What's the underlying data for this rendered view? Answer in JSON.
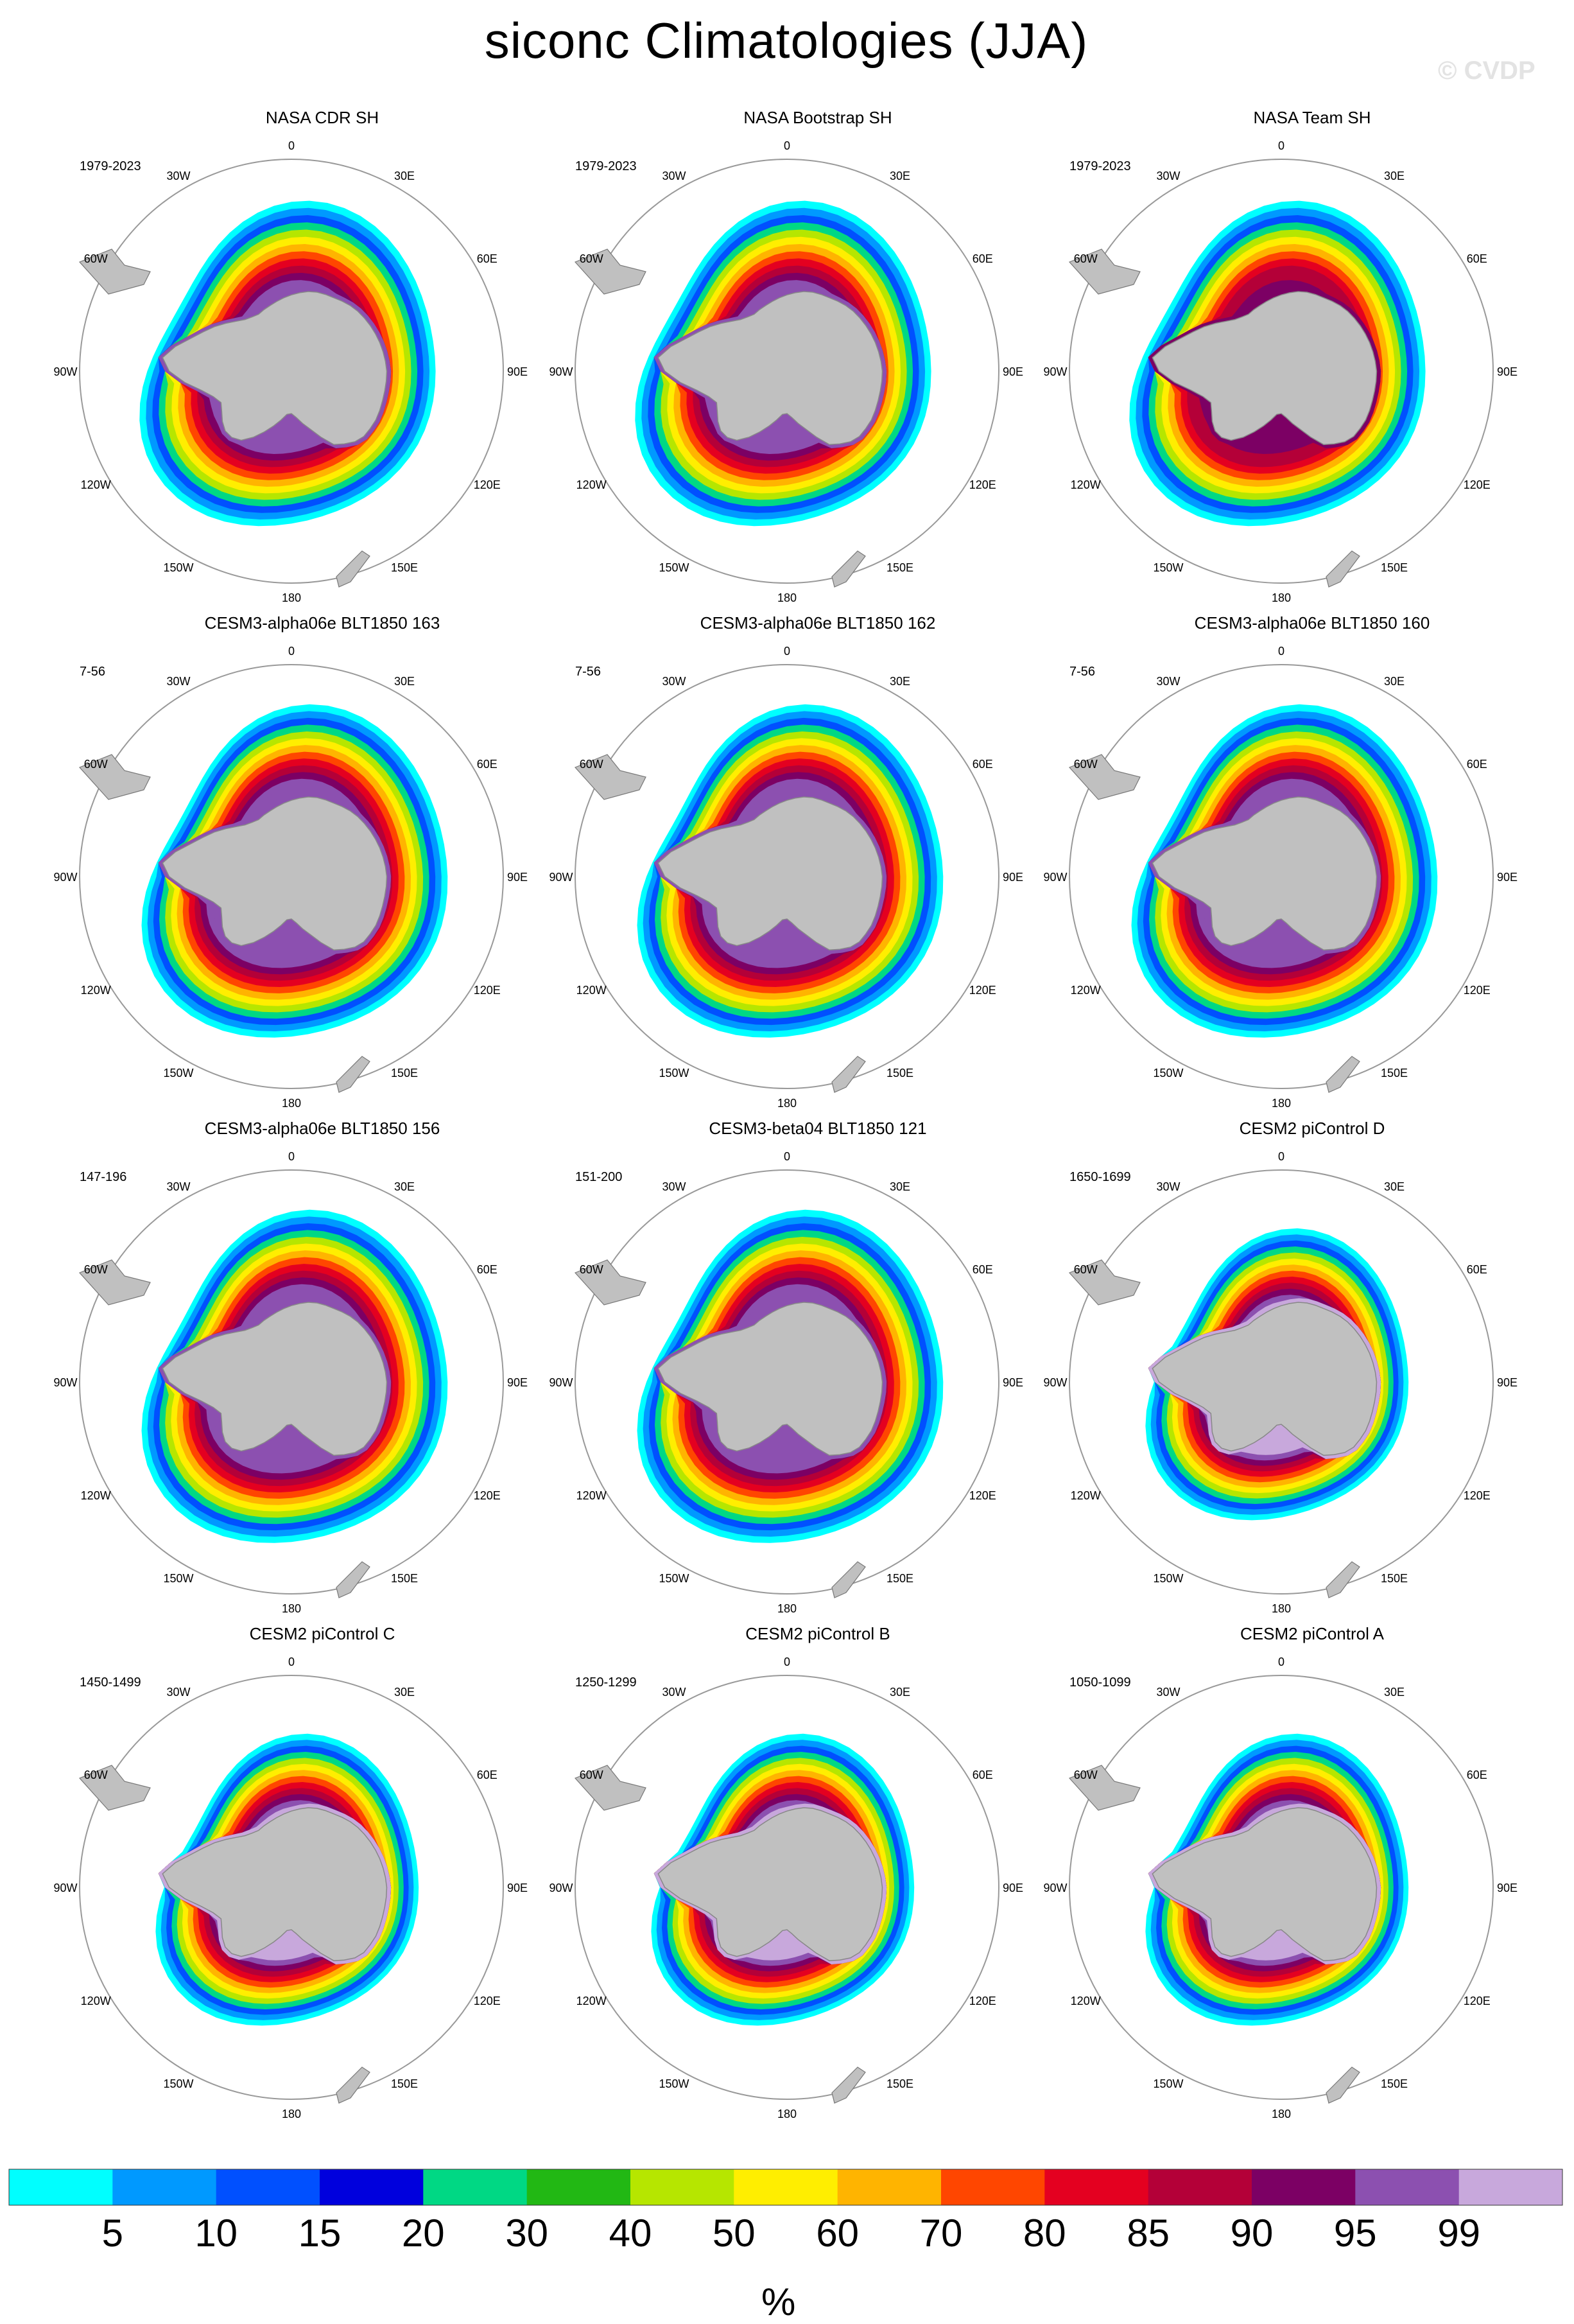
{
  "title": "siconc Climatologies (JJA)",
  "watermark": "© CVDP",
  "map": {
    "longitude_labels": [
      "0",
      "30E",
      "60E",
      "90E",
      "120E",
      "150E",
      "180",
      "150W",
      "120W",
      "90W",
      "60W",
      "30W"
    ],
    "land_color": "#c0c0c0",
    "pole_color": "#ffffff"
  },
  "panels": [
    {
      "title": "NASA CDR SH",
      "years": "1979-2023",
      "style": "obs"
    },
    {
      "title": "NASA Bootstrap SH",
      "years": "1979-2023",
      "style": "obs"
    },
    {
      "title": "NASA Team SH",
      "years": "1979-2023",
      "style": "obs-team"
    },
    {
      "title": "CESM3-alpha06e BLT1850 163",
      "years": "7-56",
      "style": "model"
    },
    {
      "title": "CESM3-alpha06e BLT1850 162",
      "years": "7-56",
      "style": "model"
    },
    {
      "title": "CESM3-alpha06e BLT1850 160",
      "years": "7-56",
      "style": "model"
    },
    {
      "title": "CESM3-alpha06e BLT1850 156",
      "years": "147-196",
      "style": "model"
    },
    {
      "title": "CESM3-beta04 BLT1850 121",
      "years": "151-200",
      "style": "model"
    },
    {
      "title": "CESM2 piControl D",
      "years": "1650-1699",
      "style": "cesm2"
    },
    {
      "title": "CESM2 piControl C",
      "years": "1450-1499",
      "style": "cesm2"
    },
    {
      "title": "CESM2 piControl B",
      "years": "1250-1299",
      "style": "cesm2"
    },
    {
      "title": "CESM2 piControl A",
      "years": "1050-1099",
      "style": "cesm2"
    }
  ],
  "colorbar": {
    "units": "%",
    "labels": [
      "5",
      "10",
      "15",
      "20",
      "30",
      "40",
      "50",
      "60",
      "70",
      "80",
      "85",
      "90",
      "95",
      "99"
    ],
    "colors": [
      "#00ffff",
      "#0099ff",
      "#0050ff",
      "#0000dd",
      "#00d884",
      "#22b814",
      "#b6e600",
      "#ffee00",
      "#ffb400",
      "#ff4600",
      "#e40020",
      "#b40038",
      "#7c0064",
      "#8c50b0",
      "#c8a8dc"
    ]
  }
}
